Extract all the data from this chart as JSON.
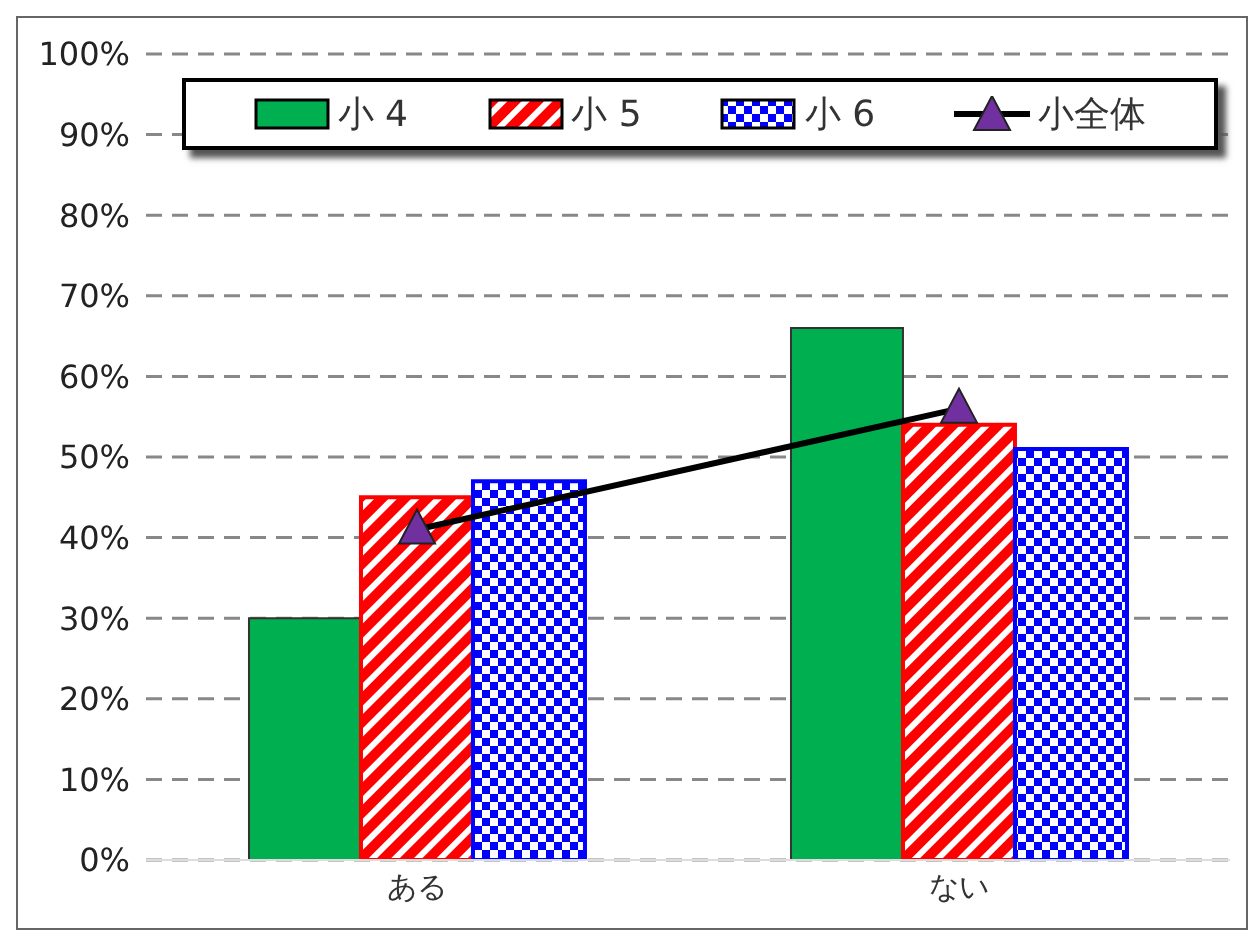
{
  "chart_data": {
    "type": "bar",
    "categories": [
      "ある",
      "ない"
    ],
    "series": [
      {
        "name": "小 4",
        "color": "#00b050",
        "values": [
          30,
          66
        ]
      },
      {
        "name": "小 5",
        "color": "#ff0000",
        "values": [
          45,
          54
        ]
      },
      {
        "name": "小 6",
        "color": "#0000ff",
        "values": [
          47,
          51
        ]
      },
      {
        "name": "小全体",
        "type": "line",
        "color": "#7030a0",
        "values": [
          41,
          56
        ],
        "marker": "triangle"
      }
    ],
    "ylim": [
      0,
      100
    ],
    "yticks": [
      {
        "value": 0,
        "label": "0%"
      },
      {
        "value": 10,
        "label": "10%"
      },
      {
        "value": 20,
        "label": "20%"
      },
      {
        "value": 30,
        "label": "30%"
      },
      {
        "value": 40,
        "label": "40%"
      },
      {
        "value": 50,
        "label": "50%"
      },
      {
        "value": 60,
        "label": "60%"
      },
      {
        "value": 70,
        "label": "70%"
      },
      {
        "value": 80,
        "label": "80%"
      },
      {
        "value": 90,
        "label": "90%"
      },
      {
        "value": 100,
        "label": "100%"
      }
    ],
    "grid": "y",
    "legend": "top"
  }
}
